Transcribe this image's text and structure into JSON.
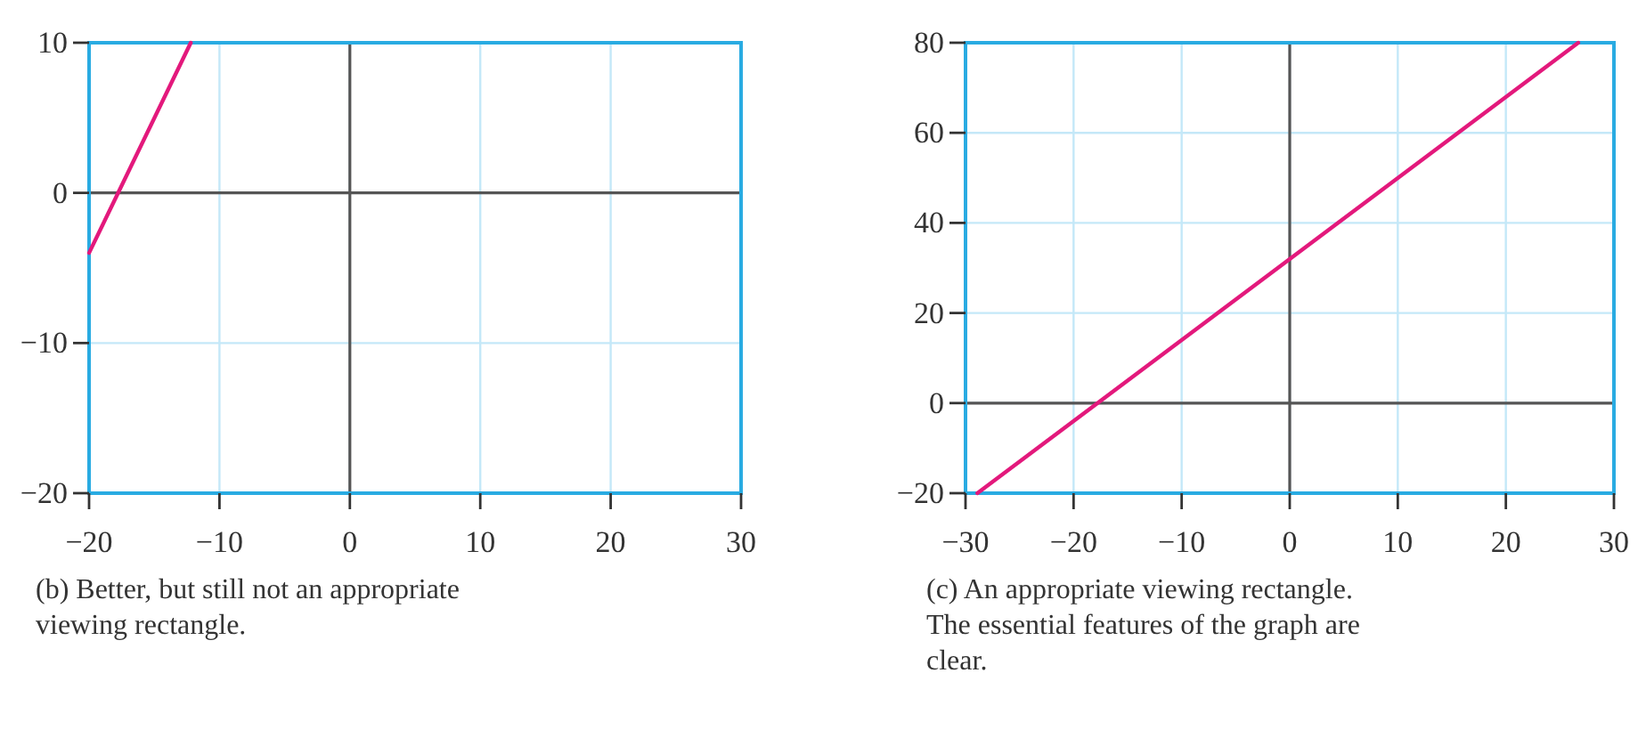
{
  "chart_data": [
    {
      "type": "line",
      "x": [
        -20,
        -12.2
      ],
      "values": [
        -4,
        10
      ],
      "color": "#e3197c",
      "xlim": [
        -20,
        30
      ],
      "ylim": [
        -20,
        10
      ],
      "xticks": [
        -20,
        -10,
        0,
        10,
        20,
        30
      ],
      "yticks": [
        -20,
        -10,
        0,
        10
      ],
      "grid": true,
      "annotations": [
        "(b) Better, but still not an appropriate viewing rectangle."
      ]
    },
    {
      "type": "line",
      "x": [
        -28.9,
        26.7
      ],
      "values": [
        -20,
        80
      ],
      "color": "#e3197c",
      "xlim": [
        -30,
        30
      ],
      "ylim": [
        -20,
        80
      ],
      "xticks": [
        -30,
        -20,
        -10,
        0,
        10,
        20,
        30
      ],
      "yticks": [
        -20,
        0,
        20,
        40,
        60,
        80
      ],
      "grid": true,
      "annotations": [
        "(c) An appropriate viewing rectangle. The essential features of the graph are clear."
      ]
    }
  ]
}
